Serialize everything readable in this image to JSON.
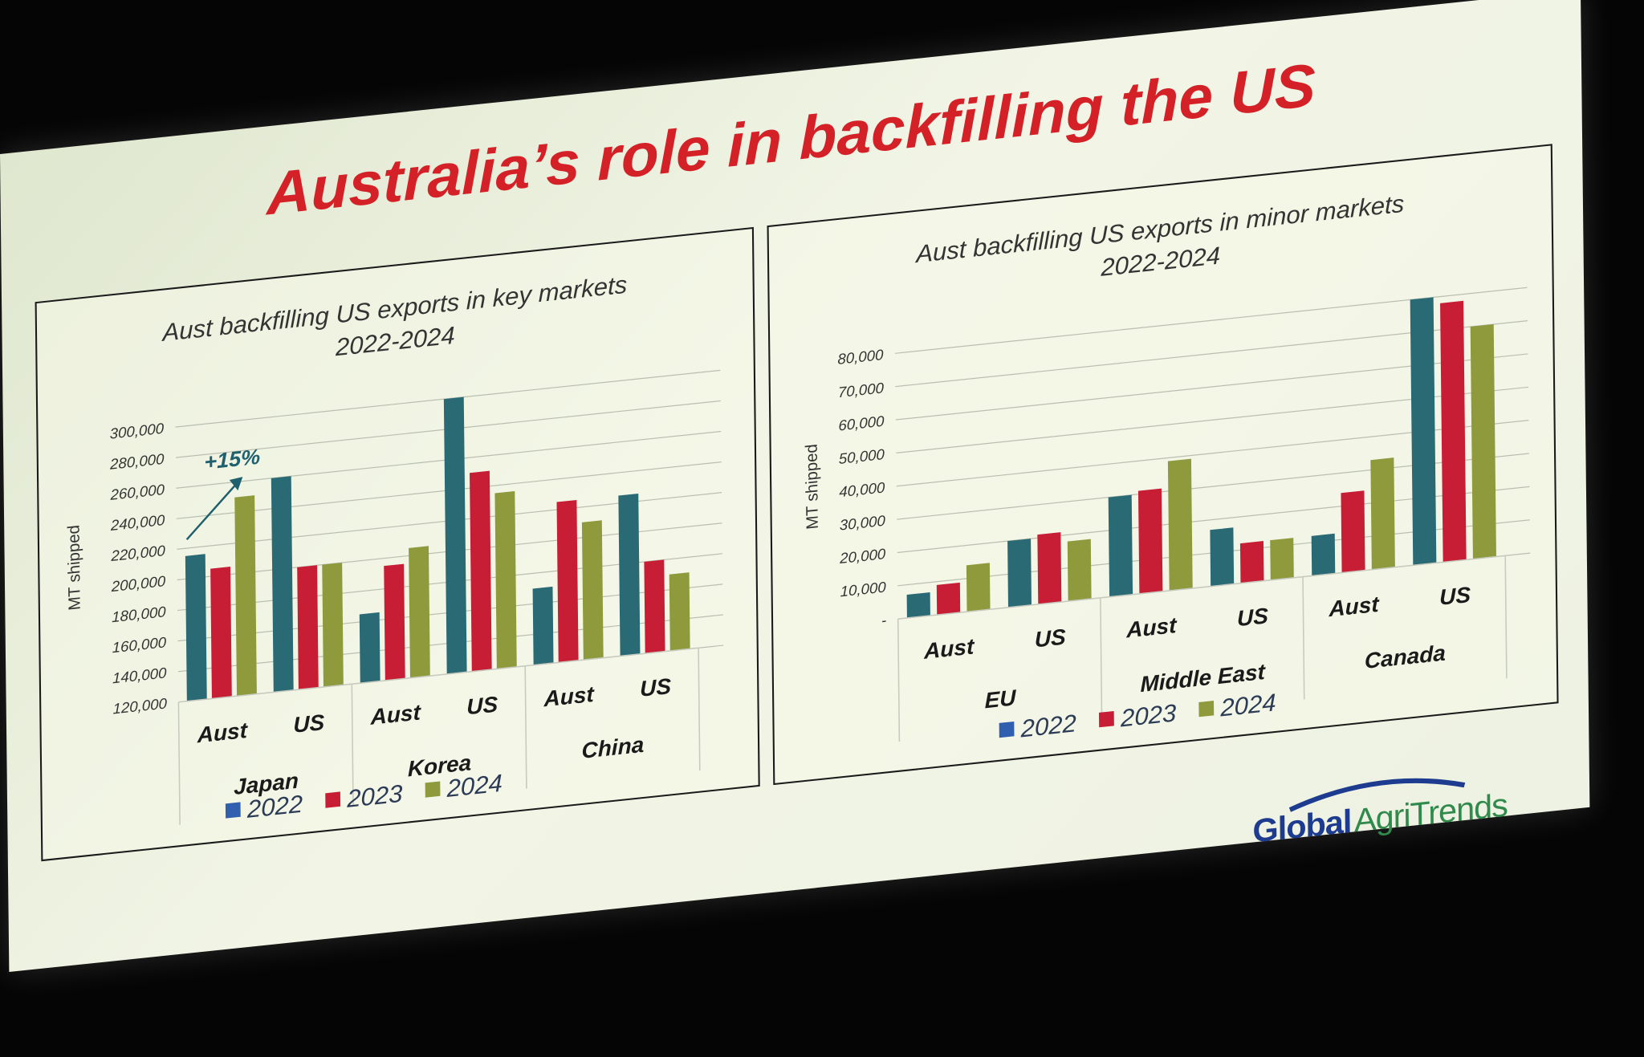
{
  "slide": {
    "title": "Australia’s role in backfilling the US"
  },
  "colors": {
    "2022": "#2a6a75",
    "2023": "#c81e35",
    "2024": "#8e9a3c",
    "legend_2022": "#2f5fae"
  },
  "chart_data": [
    {
      "type": "bar",
      "title": "Aust backfilling US exports in key markets",
      "subtitle": "2022-2024",
      "ylabel": "MT shipped",
      "ylim": [
        120000,
        310000
      ],
      "yticks": [
        120000,
        140000,
        160000,
        180000,
        200000,
        220000,
        240000,
        260000,
        280000,
        300000
      ],
      "ytick_labels": [
        "120,000",
        "140,000",
        "160,000",
        "180,000",
        "200,000",
        "220,000",
        "240,000",
        "260,000",
        "280,000",
        "300,000"
      ],
      "groups": [
        {
          "name": "Japan",
          "categories": [
            "Aust",
            "US"
          ]
        },
        {
          "name": "Korea",
          "categories": [
            "Aust",
            "US"
          ]
        },
        {
          "name": "China",
          "categories": [
            "Aust",
            "US"
          ]
        }
      ],
      "categories": [
        "Aust",
        "US",
        "Aust",
        "US",
        "Aust",
        "US"
      ],
      "series": [
        {
          "name": "2022",
          "values": [
            215000,
            260000,
            165000,
            300000,
            170000,
            225000
          ]
        },
        {
          "name": "2023",
          "values": [
            205000,
            200000,
            195000,
            250000,
            225000,
            180000
          ]
        },
        {
          "name": "2024",
          "values": [
            250000,
            200000,
            205000,
            235000,
            210000,
            170000
          ]
        }
      ],
      "annotation": {
        "text": "+15%"
      },
      "legend": "bottom"
    },
    {
      "type": "bar",
      "title": "Aust backfilling US exports in minor markets",
      "subtitle": "2022-2024",
      "ylabel": "MT shipped",
      "ylim": [
        0,
        85000
      ],
      "yticks": [
        0,
        10000,
        20000,
        30000,
        40000,
        50000,
        60000,
        70000,
        80000
      ],
      "ytick_labels": [
        "-",
        "10,000",
        "20,000",
        "30,000",
        "40,000",
        "50,000",
        "60,000",
        "70,000",
        "80,000"
      ],
      "groups": [
        {
          "name": "EU",
          "categories": [
            "Aust",
            "US"
          ]
        },
        {
          "name": "Middle East",
          "categories": [
            "Aust",
            "US"
          ]
        },
        {
          "name": "Canada",
          "categories": [
            "Aust",
            "US"
          ]
        }
      ],
      "categories": [
        "Aust",
        "US",
        "Aust",
        "US",
        "Aust",
        "US"
      ],
      "series": [
        {
          "name": "2022",
          "values": [
            7000,
            20000,
            30000,
            17000,
            12000,
            80000
          ]
        },
        {
          "name": "2023",
          "values": [
            9000,
            21000,
            31000,
            12000,
            24000,
            78000
          ]
        },
        {
          "name": "2024",
          "values": [
            14000,
            18000,
            39000,
            12000,
            33000,
            70000
          ]
        }
      ],
      "legend": "bottom"
    }
  ],
  "logo": {
    "part1": "Global",
    "part2": "AgriTrends"
  }
}
